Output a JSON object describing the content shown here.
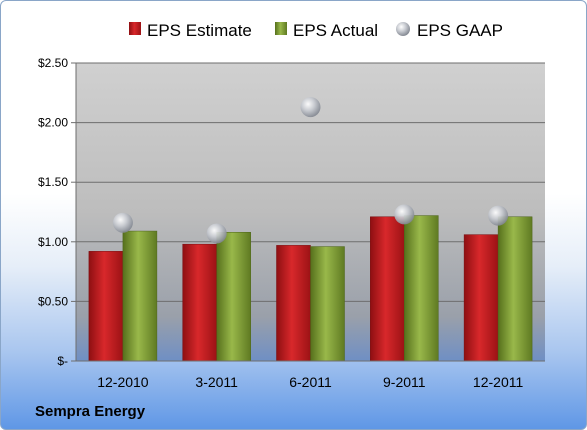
{
  "company": "Sempra Energy",
  "chart_data": {
    "type": "bar",
    "categories": [
      "12-2010",
      "3-2011",
      "6-2011",
      "9-2011",
      "12-2011"
    ],
    "series": [
      {
        "name": "EPS Estimate",
        "kind": "bar",
        "color": "#c0191c",
        "values": [
          0.92,
          0.98,
          0.97,
          1.21,
          1.06
        ]
      },
      {
        "name": "EPS Actual",
        "kind": "bar",
        "color": "#7a9a2e",
        "values": [
          1.09,
          1.08,
          0.96,
          1.22,
          1.21
        ]
      },
      {
        "name": "EPS GAAP",
        "kind": "scatter",
        "color": "#b8bcc4",
        "values": [
          1.16,
          1.07,
          2.13,
          1.23,
          1.22
        ]
      }
    ],
    "y_ticks": [
      {
        "value": 0,
        "label": "$-"
      },
      {
        "value": 0.5,
        "label": "$0.50"
      },
      {
        "value": 1.0,
        "label": "$1.00"
      },
      {
        "value": 1.5,
        "label": "$1.50"
      },
      {
        "value": 2.0,
        "label": "$2.00"
      },
      {
        "value": 2.5,
        "label": "$2.50"
      }
    ],
    "ylim": [
      0,
      2.5
    ],
    "grid": true,
    "legend_position": "top"
  }
}
